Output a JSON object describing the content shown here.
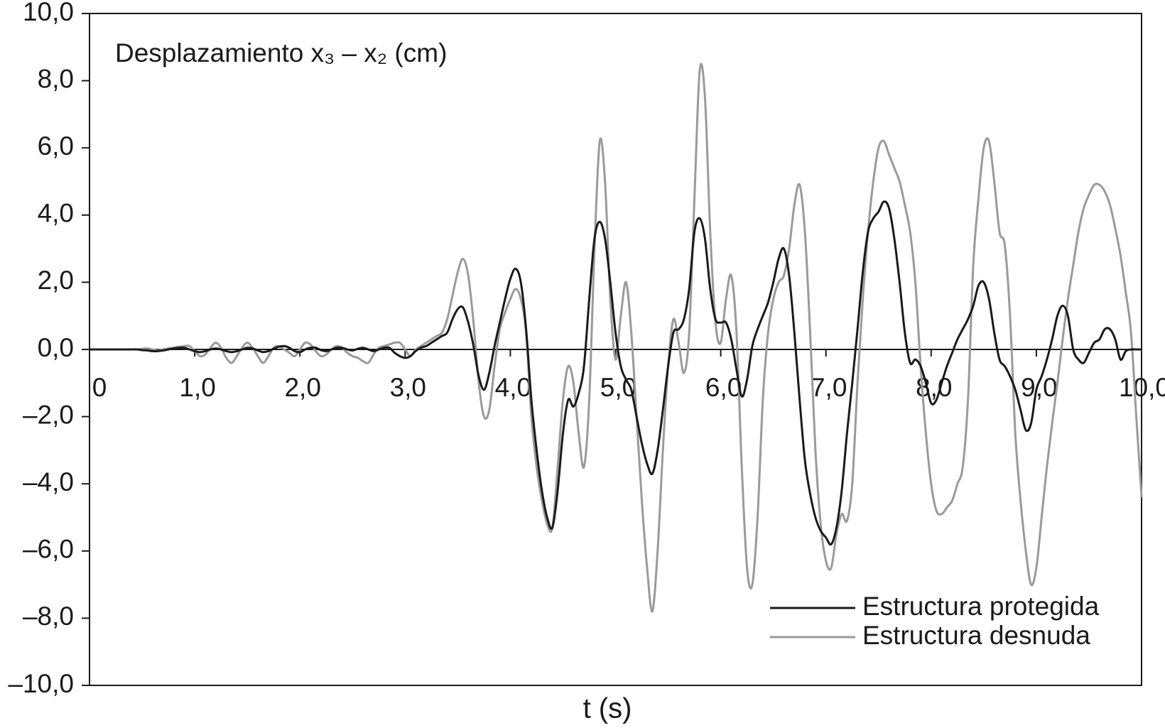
{
  "chart_data": {
    "type": "line",
    "title": "Desplazamiento x₃ – x₂ (cm)",
    "xlabel": "t (s)",
    "xlim": [
      0,
      10
    ],
    "ylim": [
      -10,
      10
    ],
    "xticks": [
      {
        "value": 0,
        "label": "0"
      },
      {
        "value": 1,
        "label": "1,0"
      },
      {
        "value": 2,
        "label": "2,0"
      },
      {
        "value": 3,
        "label": "3,0"
      },
      {
        "value": 4,
        "label": "4,0"
      },
      {
        "value": 5,
        "label": "5,0"
      },
      {
        "value": 6,
        "label": "6,0"
      },
      {
        "value": 7,
        "label": "7,0"
      },
      {
        "value": 8,
        "label": "8,0"
      },
      {
        "value": 9,
        "label": "9,0"
      },
      {
        "value": 10,
        "label": "10,0"
      }
    ],
    "yticks": [
      {
        "value": -10,
        "label": "–10,0"
      },
      {
        "value": -8,
        "label": "–8,0"
      },
      {
        "value": -6,
        "label": "–6,0"
      },
      {
        "value": -4,
        "label": "–4,0"
      },
      {
        "value": -2,
        "label": "–2,0"
      },
      {
        "value": 0,
        "label": "0,0"
      },
      {
        "value": 2,
        "label": "2,0"
      },
      {
        "value": 4,
        "label": "4,0"
      },
      {
        "value": 6,
        "label": "6,0"
      },
      {
        "value": 8,
        "label": "8,0"
      },
      {
        "value": 10,
        "label": "10,0"
      }
    ],
    "legend": "lower right",
    "grid": false,
    "x": [
      0,
      0.05,
      0.1,
      0.15,
      0.2,
      0.25,
      0.3,
      0.35,
      0.4,
      0.45,
      0.5,
      0.55,
      0.6,
      0.65,
      0.7,
      0.75,
      0.8,
      0.85,
      0.9,
      0.95,
      1,
      1.05,
      1.1,
      1.15,
      1.2,
      1.25,
      1.3,
      1.35,
      1.4,
      1.45,
      1.5,
      1.55,
      1.6,
      1.65,
      1.7,
      1.75,
      1.8,
      1.85,
      1.9,
      1.95,
      2,
      2.05,
      2.1,
      2.15,
      2.2,
      2.25,
      2.3,
      2.35,
      2.4,
      2.45,
      2.5,
      2.55,
      2.6,
      2.65,
      2.7,
      2.75,
      2.8,
      2.85,
      2.9,
      2.95,
      3,
      3.05,
      3.1,
      3.15,
      3.2,
      3.25,
      3.3,
      3.35,
      3.4,
      3.45,
      3.5,
      3.55,
      3.6,
      3.65,
      3.7,
      3.75,
      3.8,
      3.85,
      3.9,
      3.95,
      4,
      4.05,
      4.1,
      4.15,
      4.2,
      4.25,
      4.3,
      4.35,
      4.4,
      4.45,
      4.5,
      4.55,
      4.6,
      4.65,
      4.7,
      4.75,
      4.8,
      4.85,
      4.9,
      4.95,
      5,
      5.05,
      5.1,
      5.15,
      5.2,
      5.25,
      5.3,
      5.35,
      5.4,
      5.45,
      5.5,
      5.55,
      5.6,
      5.65,
      5.7,
      5.75,
      5.8,
      5.85,
      5.9,
      5.95,
      6,
      6.05,
      6.1,
      6.15,
      6.2,
      6.25,
      6.3,
      6.35,
      6.4,
      6.45,
      6.5,
      6.55,
      6.6,
      6.65,
      6.7,
      6.75,
      6.8,
      6.85,
      6.9,
      6.95,
      7,
      7.05,
      7.1,
      7.15,
      7.2,
      7.25,
      7.3,
      7.35,
      7.4,
      7.45,
      7.5,
      7.55,
      7.6,
      7.65,
      7.7,
      7.75,
      7.8,
      7.85,
      7.9,
      7.95,
      8,
      8.05,
      8.1,
      8.15,
      8.2,
      8.25,
      8.3,
      8.35,
      8.4,
      8.45,
      8.5,
      8.55,
      8.6,
      8.65,
      8.7,
      8.75,
      8.8,
      8.85,
      8.9,
      8.95,
      9,
      9.05,
      9.1,
      9.15,
      9.2,
      9.25,
      9.3,
      9.35,
      9.4,
      9.45,
      9.5,
      9.55,
      9.6,
      9.65,
      9.7,
      9.75,
      9.8,
      9.85,
      9.9,
      9.95,
      10
    ],
    "series": [
      {
        "name": "Estructura desnuda",
        "color": "#9a9a9a",
        "values": [
          0,
          0,
          0,
          0,
          0,
          0,
          0,
          0,
          0,
          0,
          0.02,
          0.03,
          0,
          -0.03,
          0,
          0.03,
          0.05,
          0.08,
          0.1,
          0.1,
          -0.05,
          -0.2,
          -0.15,
          0.05,
          0.2,
          0.05,
          -0.25,
          -0.4,
          -0.2,
          0.05,
          0.2,
          0.05,
          -0.2,
          -0.4,
          -0.2,
          0.05,
          0.1,
          0,
          -0.1,
          -0.2,
          0,
          0.2,
          0.15,
          -0.05,
          -0.2,
          -0.15,
          0,
          0.1,
          0.05,
          -0.1,
          -0.2,
          -0.25,
          -0.35,
          -0.4,
          -0.15,
          0.05,
          0.1,
          0.15,
          0.2,
          0.2,
          0,
          -0.2,
          0,
          0.1,
          0.2,
          0.3,
          0.4,
          0.5,
          0.9,
          1.6,
          2.3,
          2.7,
          2.2,
          0.8,
          -1.0,
          -2.0,
          -1.8,
          -0.5,
          0.6,
          1.1,
          1.5,
          1.8,
          1.5,
          0.5,
          -2.0,
          -3.5,
          -4.5,
          -5.2,
          -5.3,
          -3.5,
          -1.5,
          -0.5,
          -1.0,
          -2.5,
          -3.5,
          -1.5,
          3.0,
          6.2,
          5.0,
          1.5,
          -0.3,
          1.0,
          2.0,
          0.5,
          -2.0,
          -4.5,
          -6.5,
          -7.8,
          -6.0,
          -3.0,
          -0.5,
          0.9,
          0.2,
          -0.7,
          0.5,
          4.5,
          8.3,
          7.5,
          3.5,
          0.8,
          0.2,
          1.5,
          2.2,
          0.5,
          -3.5,
          -6.5,
          -7.0,
          -5.0,
          -1.5,
          0.5,
          1.5,
          2.0,
          2.2,
          3.0,
          4.3,
          4.9,
          3.5,
          0.5,
          -3.0,
          -5.2,
          -6.3,
          -6.5,
          -5.5,
          -4.9,
          -5.1,
          -4.0,
          -1.0,
          1.5,
          3.5,
          5.0,
          6.0,
          6.2,
          5.8,
          5.4,
          5.0,
          4.3,
          3.5,
          2.0,
          -0.5,
          -2.5,
          -4.0,
          -4.8,
          -4.9,
          -4.7,
          -4.5,
          -4.0,
          -3.5,
          -1.5,
          2.5,
          4.5,
          6.0,
          6.2,
          5.0,
          3.5,
          3.1,
          1.0,
          -2.5,
          -4.5,
          -6.0,
          -7.0,
          -6.5,
          -5.0,
          -3.5,
          -2.2,
          -1.0,
          0.3,
          1.5,
          2.5,
          3.5,
          4.2,
          4.6,
          4.9,
          4.9,
          4.7,
          4.3,
          3.6,
          2.8,
          1.7,
          0.5,
          -2.0,
          -4.4
        ]
      },
      {
        "name": "Estructura protegida",
        "color": "#1a1a1a",
        "values": [
          0,
          0,
          0,
          0,
          0,
          0,
          0,
          0,
          0,
          0,
          -0.02,
          -0.03,
          -0.05,
          -0.05,
          -0.03,
          0,
          0.03,
          0.05,
          0.05,
          0,
          -0.05,
          -0.08,
          -0.05,
          0,
          0.03,
          0,
          -0.05,
          -0.08,
          -0.05,
          0,
          0.05,
          0.03,
          -0.03,
          -0.08,
          -0.05,
          0.02,
          0.08,
          0.1,
          0.05,
          -0.05,
          -0.08,
          0,
          0.05,
          0.05,
          -0.02,
          -0.05,
          0,
          0.05,
          0.05,
          0,
          -0.03,
          0.02,
          0.05,
          0,
          -0.05,
          0,
          0.05,
          0.05,
          -0.1,
          -0.2,
          -0.25,
          -0.2,
          -0.05,
          0.05,
          0.1,
          0.2,
          0.3,
          0.4,
          0.5,
          0.9,
          1.2,
          1.25,
          0.8,
          0.1,
          -0.8,
          -1.2,
          -0.7,
          0.1,
          0.8,
          1.5,
          2.1,
          2.4,
          2.0,
          0.6,
          -1.5,
          -3.0,
          -4.2,
          -5.0,
          -5.3,
          -4.2,
          -2.5,
          -1.5,
          -1.7,
          -1.3,
          -0.5,
          1.5,
          3.3,
          3.8,
          3.3,
          2.0,
          0.5,
          -0.5,
          -0.9,
          -1.2,
          -2.0,
          -2.8,
          -3.4,
          -3.7,
          -3.0,
          -1.8,
          -0.5,
          0.5,
          0.6,
          0.9,
          1.8,
          3.5,
          3.9,
          3.3,
          1.8,
          0.9,
          0.8,
          0.8,
          0.3,
          -0.6,
          -1.4,
          -0.9,
          0.1,
          0.6,
          1.0,
          1.4,
          2.0,
          2.7,
          3.0,
          2.2,
          0.5,
          -1.5,
          -3.3,
          -4.3,
          -5.0,
          -5.4,
          -5.6,
          -5.8,
          -5.3,
          -4.2,
          -2.5,
          -1.0,
          0.6,
          2.3,
          3.5,
          3.9,
          4.1,
          4.4,
          4.2,
          3.3,
          2.0,
          0.5,
          -0.4,
          -0.3,
          -0.5,
          -1.0,
          -1.6,
          -1.5,
          -1.0,
          -0.5,
          -0.1,
          0.3,
          0.6,
          0.9,
          1.3,
          1.9,
          2.0,
          1.5,
          0.5,
          -0.3,
          -0.5,
          -0.8,
          -1.2,
          -1.8,
          -2.4,
          -2.2,
          -1.2,
          -0.8,
          -0.3,
          0.3,
          1.0,
          1.3,
          1.0,
          0,
          -0.3,
          -0.4,
          -0.1,
          0.2,
          0.3,
          0.6,
          0.6,
          0.3,
          -0.3,
          -0.05,
          0,
          0,
          0
        ]
      }
    ]
  }
}
